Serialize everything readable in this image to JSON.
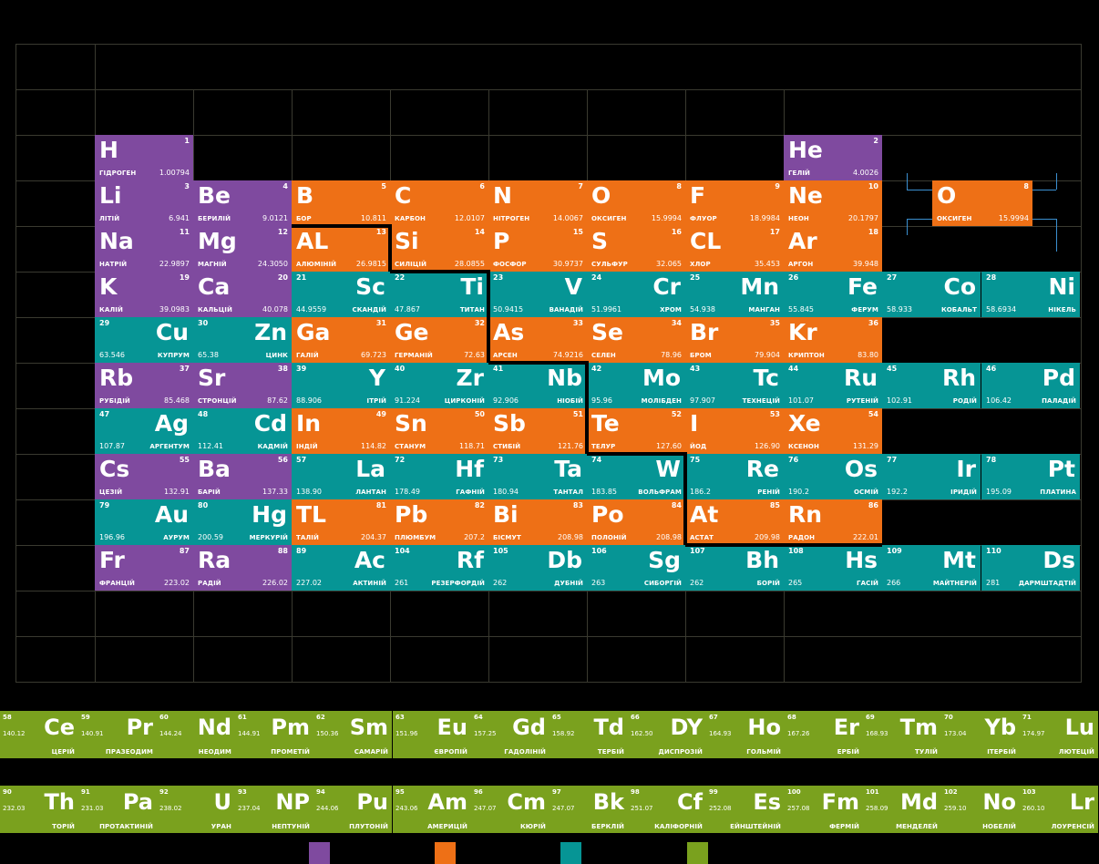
{
  "colors": {
    "purple": "#7f4a9f",
    "orange": "#ee7016",
    "teal": "#069595",
    "green": "#7aa11e"
  },
  "main_elements": [
    {
      "sym": "H",
      "num": "1",
      "name": "ГІДРОГЕН",
      "mass": "1.00794",
      "cat": "purple"
    },
    {
      "sym": "He",
      "num": "2",
      "name": "ГЕЛІЙ",
      "mass": "4.0026",
      "cat": "purple"
    },
    {
      "sym": "Li",
      "num": "3",
      "name": "ЛІТІЙ",
      "mass": "6.941",
      "cat": "purple"
    },
    {
      "sym": "Be",
      "num": "4",
      "name": "БЕРИЛІЙ",
      "mass": "9.0121",
      "cat": "purple"
    },
    {
      "sym": "B",
      "num": "5",
      "name": "БОР",
      "mass": "10.811",
      "cat": "orange"
    },
    {
      "sym": "C",
      "num": "6",
      "name": "КАРБОН",
      "mass": "12.0107",
      "cat": "orange"
    },
    {
      "sym": "N",
      "num": "7",
      "name": "НІТРОГЕН",
      "mass": "14.0067",
      "cat": "orange"
    },
    {
      "sym": "O",
      "num": "8",
      "name": "ОКСИГЕН",
      "mass": "15.9994",
      "cat": "orange"
    },
    {
      "sym": "F",
      "num": "9",
      "name": "ФЛУОР",
      "mass": "18.9984",
      "cat": "orange"
    },
    {
      "sym": "Ne",
      "num": "10",
      "name": "НЕОН",
      "mass": "20.1797",
      "cat": "orange"
    },
    {
      "sym": "Na",
      "num": "11",
      "name": "НАТРІЙ",
      "mass": "22.9897",
      "cat": "purple"
    },
    {
      "sym": "Mg",
      "num": "12",
      "name": "МАГНІЙ",
      "mass": "24.3050",
      "cat": "purple"
    },
    {
      "sym": "AL",
      "num": "13",
      "name": "АЛЮМІНІЙ",
      "mass": "26.9815",
      "cat": "orange"
    },
    {
      "sym": "Si",
      "num": "14",
      "name": "СИЛІЦІЙ",
      "mass": "28.0855",
      "cat": "orange"
    },
    {
      "sym": "P",
      "num": "15",
      "name": "ФОСФОР",
      "mass": "30.9737",
      "cat": "orange"
    },
    {
      "sym": "S",
      "num": "16",
      "name": "СУЛЬФУР",
      "mass": "32.065",
      "cat": "orange"
    },
    {
      "sym": "CL",
      "num": "17",
      "name": "ХЛОР",
      "mass": "35.453",
      "cat": "orange"
    },
    {
      "sym": "Ar",
      "num": "18",
      "name": "АРГОН",
      "mass": "39.948",
      "cat": "orange"
    },
    {
      "sym": "K",
      "num": "19",
      "name": "КАЛІЙ",
      "mass": "39.0983",
      "cat": "purple"
    },
    {
      "sym": "Ca",
      "num": "20",
      "name": "КАЛЬЦІЙ",
      "mass": "40.078",
      "cat": "purple"
    },
    {
      "sym": "Sc",
      "num": "21",
      "name": "СКАНДІЙ",
      "mass": "44.9559",
      "cat": "teal"
    },
    {
      "sym": "Ti",
      "num": "22",
      "name": "ТИТАН",
      "mass": "47.867",
      "cat": "teal"
    },
    {
      "sym": "V",
      "num": "23",
      "name": "ВАНАДІЙ",
      "mass": "50.9415",
      "cat": "teal"
    },
    {
      "sym": "Cr",
      "num": "24",
      "name": "ХРОМ",
      "mass": "51.9961",
      "cat": "teal"
    },
    {
      "sym": "Mn",
      "num": "25",
      "name": "МАНГАН",
      "mass": "54.938",
      "cat": "teal"
    },
    {
      "sym": "Fe",
      "num": "26",
      "name": "ФЕРУМ",
      "mass": "55.845",
      "cat": "teal"
    },
    {
      "sym": "Co",
      "num": "27",
      "name": "КОБАЛЬТ",
      "mass": "58.933",
      "cat": "teal"
    },
    {
      "sym": "Ni",
      "num": "28",
      "name": "НІКЕЛЬ",
      "mass": "58.6934",
      "cat": "teal"
    },
    {
      "sym": "Cu",
      "num": "29",
      "name": "КУПРУМ",
      "mass": "63.546",
      "cat": "teal"
    },
    {
      "sym": "Zn",
      "num": "30",
      "name": "ЦИНК",
      "mass": "65.38",
      "cat": "teal"
    },
    {
      "sym": "Ga",
      "num": "31",
      "name": "ГАЛІЙ",
      "mass": "69.723",
      "cat": "orange"
    },
    {
      "sym": "Ge",
      "num": "32",
      "name": "ГЕРМАНІЙ",
      "mass": "72.63",
      "cat": "orange"
    },
    {
      "sym": "As",
      "num": "33",
      "name": "АРСЕН",
      "mass": "74.9216",
      "cat": "orange"
    },
    {
      "sym": "Se",
      "num": "34",
      "name": "СЕЛЕН",
      "mass": "78.96",
      "cat": "orange"
    },
    {
      "sym": "Br",
      "num": "35",
      "name": "БРОМ",
      "mass": "79.904",
      "cat": "orange"
    },
    {
      "sym": "Kr",
      "num": "36",
      "name": "КРИПТОН",
      "mass": "83.80",
      "cat": "orange"
    },
    {
      "sym": "Rb",
      "num": "37",
      "name": "РУБІДІЙ",
      "mass": "85.468",
      "cat": "purple"
    },
    {
      "sym": "Sr",
      "num": "38",
      "name": "СТРОНЦІЙ",
      "mass": "87.62",
      "cat": "purple"
    },
    {
      "sym": "Y",
      "num": "39",
      "name": "ІТРІЙ",
      "mass": "88.906",
      "cat": "teal"
    },
    {
      "sym": "Zr",
      "num": "40",
      "name": "ЦИРКОНІЙ",
      "mass": "91.224",
      "cat": "teal"
    },
    {
      "sym": "Nb",
      "num": "41",
      "name": "НІОБІЙ",
      "mass": "92.906",
      "cat": "teal"
    },
    {
      "sym": "Mo",
      "num": "42",
      "name": "МОЛІБДЕН",
      "mass": "95.96",
      "cat": "teal"
    },
    {
      "sym": "Tc",
      "num": "43",
      "name": "ТЕХНЕЦІЙ",
      "mass": "97.907",
      "cat": "teal"
    },
    {
      "sym": "Ru",
      "num": "44",
      "name": "РУТЕНІЙ",
      "mass": "101.07",
      "cat": "teal"
    },
    {
      "sym": "Rh",
      "num": "45",
      "name": "РОДІЙ",
      "mass": "102.91",
      "cat": "teal"
    },
    {
      "sym": "Pd",
      "num": "46",
      "name": "ПАЛАДІЙ",
      "mass": "106.42",
      "cat": "teal"
    },
    {
      "sym": "Ag",
      "num": "47",
      "name": "АРГЕНТУМ",
      "mass": "107.87",
      "cat": "teal"
    },
    {
      "sym": "Cd",
      "num": "48",
      "name": "КАДМІЙ",
      "mass": "112.41",
      "cat": "teal"
    },
    {
      "sym": "In",
      "num": "49",
      "name": "ІНДІЙ",
      "mass": "114.82",
      "cat": "orange"
    },
    {
      "sym": "Sn",
      "num": "50",
      "name": "СТАНУМ",
      "mass": "118.71",
      "cat": "orange"
    },
    {
      "sym": "Sb",
      "num": "51",
      "name": "СТИБІЙ",
      "mass": "121.76",
      "cat": "orange"
    },
    {
      "sym": "Te",
      "num": "52",
      "name": "ТЕЛУР",
      "mass": "127.60",
      "cat": "orange"
    },
    {
      "sym": "I",
      "num": "53",
      "name": "ЙОД",
      "mass": "126.90",
      "cat": "orange"
    },
    {
      "sym": "Xe",
      "num": "54",
      "name": "КСЕНОН",
      "mass": "131.29",
      "cat": "orange"
    },
    {
      "sym": "Cs",
      "num": "55",
      "name": "ЦЕЗІЙ",
      "mass": "132.91",
      "cat": "purple"
    },
    {
      "sym": "Ba",
      "num": "56",
      "name": "БАРІЙ",
      "mass": "137.33",
      "cat": "purple"
    },
    {
      "sym": "La",
      "num": "57",
      "name": "ЛАНТАН",
      "mass": "138.90",
      "cat": "teal"
    },
    {
      "sym": "Hf",
      "num": "72",
      "name": "ГАФНІЙ",
      "mass": "178.49",
      "cat": "teal"
    },
    {
      "sym": "Ta",
      "num": "73",
      "name": "ТАНТАЛ",
      "mass": "180.94",
      "cat": "teal"
    },
    {
      "sym": "W",
      "num": "74",
      "name": "ВОЛЬФРАМ",
      "mass": "183.85",
      "cat": "teal"
    },
    {
      "sym": "Re",
      "num": "75",
      "name": "РЕНІЙ",
      "mass": "186.2",
      "cat": "teal"
    },
    {
      "sym": "Os",
      "num": "76",
      "name": "ОСМІЙ",
      "mass": "190.2",
      "cat": "teal"
    },
    {
      "sym": "Ir",
      "num": "77",
      "name": "ІРИДІЙ",
      "mass": "192.2",
      "cat": "teal"
    },
    {
      "sym": "Pt",
      "num": "78",
      "name": "ПЛАТИНА",
      "mass": "195.09",
      "cat": "teal"
    },
    {
      "sym": "Au",
      "num": "79",
      "name": "АУРУМ",
      "mass": "196.96",
      "cat": "teal"
    },
    {
      "sym": "Hg",
      "num": "80",
      "name": "МЕРКУРІЙ",
      "mass": "200.59",
      "cat": "teal"
    },
    {
      "sym": "TL",
      "num": "81",
      "name": "ТАЛІЙ",
      "mass": "204.37",
      "cat": "orange"
    },
    {
      "sym": "Pb",
      "num": "82",
      "name": "ПЛЮМБУМ",
      "mass": "207.2",
      "cat": "orange"
    },
    {
      "sym": "Bi",
      "num": "83",
      "name": "БІСМУТ",
      "mass": "208.98",
      "cat": "orange"
    },
    {
      "sym": "Po",
      "num": "84",
      "name": "ПОЛОНІЙ",
      "mass": "208.98",
      "cat": "orange"
    },
    {
      "sym": "At",
      "num": "85",
      "name": "АСТАТ",
      "mass": "209.98",
      "cat": "orange"
    },
    {
      "sym": "Rn",
      "num": "86",
      "name": "РАДОН",
      "mass": "222.01",
      "cat": "orange"
    },
    {
      "sym": "Fr",
      "num": "87",
      "name": "ФРАНЦІЙ",
      "mass": "223.02",
      "cat": "purple"
    },
    {
      "sym": "Ra",
      "num": "88",
      "name": "РАДІЙ",
      "mass": "226.02",
      "cat": "purple"
    },
    {
      "sym": "Ac",
      "num": "89",
      "name": "АКТИНІЙ",
      "mass": "227.02",
      "cat": "teal"
    },
    {
      "sym": "Rf",
      "num": "104",
      "name": "РЕЗЕРФОРДІЙ",
      "mass": "261",
      "cat": "teal"
    },
    {
      "sym": "Db",
      "num": "105",
      "name": "ДУБНІЙ",
      "mass": "262",
      "cat": "teal"
    },
    {
      "sym": "Sg",
      "num": "106",
      "name": "СИБОРГІЙ",
      "mass": "263",
      "cat": "teal"
    },
    {
      "sym": "Bh",
      "num": "107",
      "name": "БОРІЙ",
      "mass": "262",
      "cat": "teal"
    },
    {
      "sym": "Hs",
      "num": "108",
      "name": "ГАСІЙ",
      "mass": "265",
      "cat": "teal"
    },
    {
      "sym": "Mt",
      "num": "109",
      "name": "МАЙТНЕРІЙ",
      "mass": "266",
      "cat": "teal"
    },
    {
      "sym": "Ds",
      "num": "110",
      "name": "ДАРМШТАДТІЙ",
      "mass": "281",
      "cat": "teal"
    }
  ],
  "featured": {
    "sym": "O",
    "num": "8",
    "name": "ОКСИГЕН",
    "mass": "15.9994",
    "cat": "orange"
  },
  "lanthanides": [
    {
      "sym": "Ce",
      "num": "58",
      "name": "ЦЕРІЙ",
      "mass": "140.12"
    },
    {
      "sym": "Pr",
      "num": "59",
      "name": "ПРАЗЕОДИМ",
      "mass": "140.91"
    },
    {
      "sym": "Nd",
      "num": "60",
      "name": "НЕОДИМ",
      "mass": "144.24"
    },
    {
      "sym": "Pm",
      "num": "61",
      "name": "ПРОМЕТІЙ",
      "mass": "144.91"
    },
    {
      "sym": "Sm",
      "num": "62",
      "name": "САМАРІЙ",
      "mass": "150.36"
    },
    {
      "sym": "Eu",
      "num": "63",
      "name": "ЄВРОПІЙ",
      "mass": "151.96"
    },
    {
      "sym": "Gd",
      "num": "64",
      "name": "ГАДОЛІНІЙ",
      "mass": "157.25"
    },
    {
      "sym": "Td",
      "num": "65",
      "name": "ТЕРБІЙ",
      "mass": "158.92"
    },
    {
      "sym": "DY",
      "num": "66",
      "name": "ДИСПРОЗІЙ",
      "mass": "162.50"
    },
    {
      "sym": "Ho",
      "num": "67",
      "name": "ГОЛЬМІЙ",
      "mass": "164.93"
    },
    {
      "sym": "Er",
      "num": "68",
      "name": "ЕРБІЙ",
      "mass": "167.26"
    },
    {
      "sym": "Tm",
      "num": "69",
      "name": "ТУЛІЙ",
      "mass": "168.93"
    },
    {
      "sym": "Yb",
      "num": "70",
      "name": "ІТЕРБІЙ",
      "mass": "173.04"
    },
    {
      "sym": "Lu",
      "num": "71",
      "name": "ЛЮТЕЦІЙ",
      "mass": "174.97"
    }
  ],
  "actinides": [
    {
      "sym": "Th",
      "num": "90",
      "name": "ТОРІЙ",
      "mass": "232.03"
    },
    {
      "sym": "Pa",
      "num": "91",
      "name": "ПРОТАКТИНІЙ",
      "mass": "231.03"
    },
    {
      "sym": "U",
      "num": "92",
      "name": "УРАН",
      "mass": "238.02"
    },
    {
      "sym": "NP",
      "num": "93",
      "name": "НЕПТУНІЙ",
      "mass": "237.04"
    },
    {
      "sym": "Pu",
      "num": "94",
      "name": "ПЛУТОНІЙ",
      "mass": "244.06"
    },
    {
      "sym": "Am",
      "num": "95",
      "name": "АМЕРИЦІЙ",
      "mass": "243.06"
    },
    {
      "sym": "Cm",
      "num": "96",
      "name": "КЮРІЙ",
      "mass": "247.07"
    },
    {
      "sym": "Bk",
      "num": "97",
      "name": "БЕРКЛІЙ",
      "mass": "247.07"
    },
    {
      "sym": "Cf",
      "num": "98",
      "name": "КАЛІФОРНІЙ",
      "mass": "251.07"
    },
    {
      "sym": "Es",
      "num": "99",
      "name": "ЕЙНШТЕЙНІЙ",
      "mass": "252.08"
    },
    {
      "sym": "Fm",
      "num": "100",
      "name": "ФЕРМІЙ",
      "mass": "257.08"
    },
    {
      "sym": "Md",
      "num": "101",
      "name": "МЕНДЕЛЕЙ",
      "mass": "258.09"
    },
    {
      "sym": "No",
      "num": "102",
      "name": "НОБЕЛІЙ",
      "mass": "259.10"
    },
    {
      "sym": "Lr",
      "num": "103",
      "name": "ЛОУРЕНСІЙ",
      "mass": "260.10"
    }
  ],
  "legend": [
    "purple",
    "orange",
    "teal",
    "green"
  ]
}
